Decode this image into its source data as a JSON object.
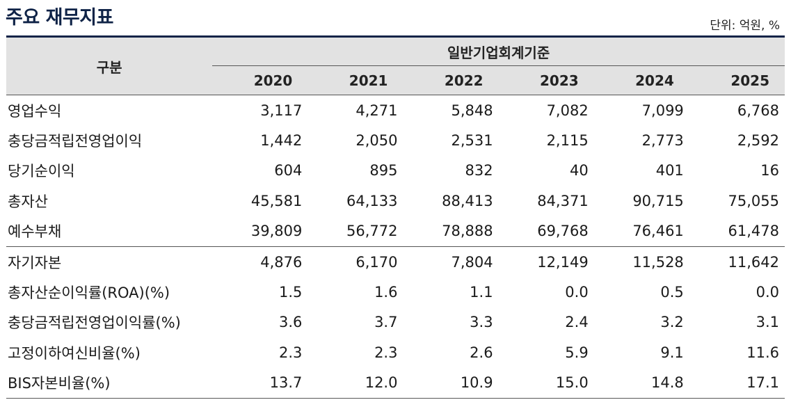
{
  "title": "주요 재무지표",
  "unit": "단위: 억원, %",
  "header": {
    "category_label": "구분",
    "group_label": "일반기업회계기준",
    "years": [
      "2020",
      "2021",
      "2022",
      "2023",
      "2024",
      "2025"
    ]
  },
  "rows": [
    {
      "label": "영업수익",
      "values": [
        "3,117",
        "4,271",
        "5,848",
        "7,082",
        "7,099",
        "6,768"
      ]
    },
    {
      "label": "충당금적립전영업이익",
      "values": [
        "1,442",
        "2,050",
        "2,531",
        "2,115",
        "2,773",
        "2,592"
      ]
    },
    {
      "label": "당기순이익",
      "values": [
        "604",
        "895",
        "832",
        "40",
        "401",
        "16"
      ]
    },
    {
      "label": "총자산",
      "values": [
        "45,581",
        "64,133",
        "88,413",
        "84,371",
        "90,715",
        "75,055"
      ]
    },
    {
      "label": "예수부채",
      "values": [
        "39,809",
        "56,772",
        "78,888",
        "69,768",
        "76,461",
        "61,478"
      ]
    },
    {
      "label": "자기자본",
      "values": [
        "4,876",
        "6,170",
        "7,804",
        "12,149",
        "11,528",
        "11,642"
      ]
    },
    {
      "label": "총자산순이익률(ROA)(%)",
      "values": [
        "1.5",
        "1.6",
        "1.1",
        "0.0",
        "0.5",
        "0.0"
      ]
    },
    {
      "label": "충당금적립전영업이익률(%)",
      "values": [
        "3.6",
        "3.7",
        "3.3",
        "2.4",
        "3.2",
        "3.1"
      ]
    },
    {
      "label": "고정이하여신비율(%)",
      "values": [
        "2.3",
        "2.3",
        "2.6",
        "5.9",
        "9.1",
        "11.6"
      ]
    },
    {
      "label": "BIS자본비율(%)",
      "values": [
        "13.7",
        "12.0",
        "10.9",
        "15.0",
        "14.8",
        "17.1"
      ]
    }
  ]
}
